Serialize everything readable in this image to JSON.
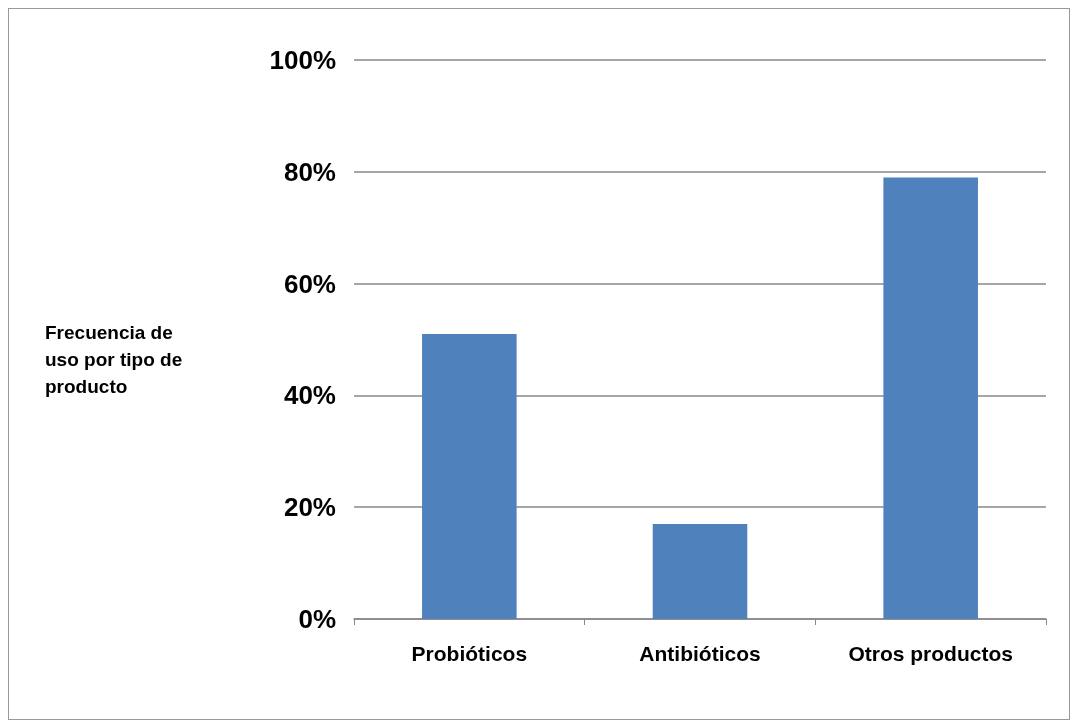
{
  "chart_data": {
    "type": "bar",
    "ylabel": "Frecuencia de uso por tipo de producto",
    "categories": [
      "Probióticos",
      "Antibióticos",
      "Otros productos"
    ],
    "values": [
      51,
      17,
      79
    ],
    "color": "#4f81bd",
    "ylim": [
      0,
      100
    ],
    "yticks": [
      {
        "value": 0,
        "label": "0%"
      },
      {
        "value": 20,
        "label": "20%"
      },
      {
        "value": 40,
        "label": "40%"
      },
      {
        "value": 60,
        "label": "60%"
      },
      {
        "value": 80,
        "label": "80%"
      },
      {
        "value": 100,
        "label": "100%"
      }
    ],
    "grid": "y"
  }
}
